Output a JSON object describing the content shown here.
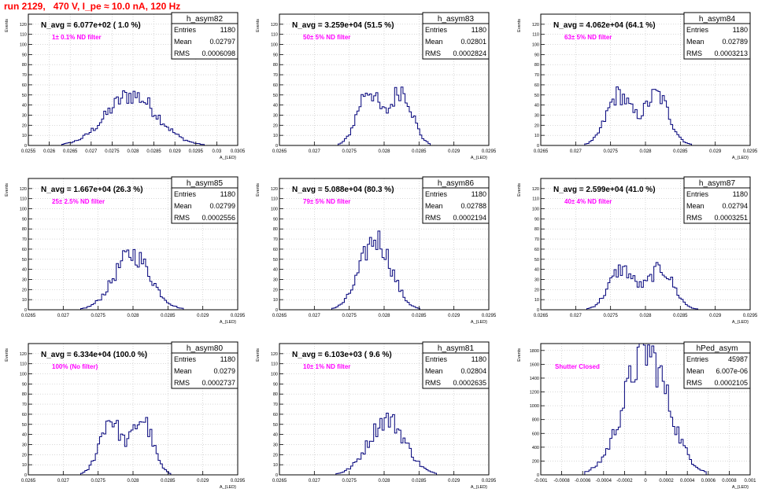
{
  "title": "run 2129,   470 V, I_pe ≈ 10.0 nA, 120 Hz",
  "ylabel": "Events",
  "xlabel": "A_{LED}",
  "colors": {
    "title": "#ff0000",
    "annotation": "#ff00ff",
    "histogram": "#00007a",
    "grid": "#c0c0c0"
  },
  "chart_data": [
    {
      "type": "histogram",
      "name": "h_asym82",
      "navg": "N_avg = 6.077e+02 ( 1.0 %)",
      "filter": "1± 0.1% ND filter",
      "stats": {
        "entries": "1180",
        "mean": "0.02797",
        "rms": "0.0006098"
      },
      "xlim": [
        0.0255,
        0.0305
      ],
      "ylim": [
        0,
        130
      ],
      "mu": 0.02797,
      "sigma": 0.00061,
      "peak": 50,
      "shape": "single",
      "grid": true,
      "xticks": [
        {
          "v": 0.0255,
          "l": "0.0255"
        },
        {
          "v": 0.026,
          "l": "0.026"
        },
        {
          "v": 0.0265,
          "l": "0.0265"
        },
        {
          "v": 0.027,
          "l": "0.027"
        },
        {
          "v": 0.0275,
          "l": "0.0275"
        },
        {
          "v": 0.028,
          "l": "0.028"
        },
        {
          "v": 0.0285,
          "l": "0.0285"
        },
        {
          "v": 0.029,
          "l": "0.029"
        },
        {
          "v": 0.0295,
          "l": "0.0295"
        },
        {
          "v": 0.03,
          "l": "0.03"
        },
        {
          "v": 0.0305,
          "l": "0.0305"
        }
      ],
      "yticks": [
        {
          "v": 0,
          "l": "0"
        },
        {
          "v": 10,
          "l": "10"
        },
        {
          "v": 20,
          "l": "20"
        },
        {
          "v": 30,
          "l": "30"
        },
        {
          "v": 40,
          "l": "40"
        },
        {
          "v": 50,
          "l": "50"
        },
        {
          "v": 60,
          "l": "60"
        },
        {
          "v": 70,
          "l": "70"
        },
        {
          "v": 80,
          "l": "80"
        },
        {
          "v": 90,
          "l": "90"
        },
        {
          "v": 100,
          "l": "100"
        },
        {
          "v": 110,
          "l": "110"
        },
        {
          "v": 120,
          "l": "120"
        }
      ]
    },
    {
      "type": "histogram",
      "name": "h_asym83",
      "navg": "N_avg = 3.259e+04 (51.5 %)",
      "filter": "50± 5% ND filter",
      "stats": {
        "entries": "1180",
        "mean": "0.02801",
        "rms": "0.0002824"
      },
      "xlim": [
        0.0265,
        0.0295
      ],
      "ylim": [
        0,
        130
      ],
      "mu": 0.02801,
      "sigma": 0.00028,
      "peak": 55,
      "shape": "double",
      "grid": true,
      "xticks": [
        {
          "v": 0.0265,
          "l": "0.0265"
        },
        {
          "v": 0.027,
          "l": "0.027"
        },
        {
          "v": 0.0275,
          "l": "0.0275"
        },
        {
          "v": 0.028,
          "l": "0.028"
        },
        {
          "v": 0.0285,
          "l": "0.0285"
        },
        {
          "v": 0.029,
          "l": "0.029"
        },
        {
          "v": 0.0295,
          "l": "0.0295"
        }
      ],
      "yticks": [
        {
          "v": 0,
          "l": "0"
        },
        {
          "v": 10,
          "l": "10"
        },
        {
          "v": 20,
          "l": "20"
        },
        {
          "v": 30,
          "l": "30"
        },
        {
          "v": 40,
          "l": "40"
        },
        {
          "v": 50,
          "l": "50"
        },
        {
          "v": 60,
          "l": "60"
        },
        {
          "v": 70,
          "l": "70"
        },
        {
          "v": 80,
          "l": "80"
        },
        {
          "v": 90,
          "l": "90"
        },
        {
          "v": 100,
          "l": "100"
        },
        {
          "v": 110,
          "l": "110"
        },
        {
          "v": 120,
          "l": "120"
        }
      ]
    },
    {
      "type": "histogram",
      "name": "h_asym84",
      "navg": "N_avg = 4.062e+04 (64.1 %)",
      "filter": "63± 5% ND filter",
      "stats": {
        "entries": "1180",
        "mean": "0.02789",
        "rms": "0.0003213"
      },
      "xlim": [
        0.0265,
        0.0295
      ],
      "ylim": [
        0,
        130
      ],
      "mu": 0.02789,
      "sigma": 0.00032,
      "peak": 50,
      "shape": "double",
      "grid": true,
      "xticks": [
        {
          "v": 0.0265,
          "l": "0.0265"
        },
        {
          "v": 0.027,
          "l": "0.027"
        },
        {
          "v": 0.0275,
          "l": "0.0275"
        },
        {
          "v": 0.028,
          "l": "0.028"
        },
        {
          "v": 0.0285,
          "l": "0.0285"
        },
        {
          "v": 0.029,
          "l": "0.029"
        },
        {
          "v": 0.0295,
          "l": "0.0295"
        }
      ],
      "yticks": [
        {
          "v": 0,
          "l": "0"
        },
        {
          "v": 10,
          "l": "10"
        },
        {
          "v": 20,
          "l": "20"
        },
        {
          "v": 30,
          "l": "30"
        },
        {
          "v": 40,
          "l": "40"
        },
        {
          "v": 50,
          "l": "50"
        },
        {
          "v": 60,
          "l": "60"
        },
        {
          "v": 70,
          "l": "70"
        },
        {
          "v": 80,
          "l": "80"
        },
        {
          "v": 90,
          "l": "90"
        },
        {
          "v": 100,
          "l": "100"
        },
        {
          "v": 110,
          "l": "110"
        },
        {
          "v": 120,
          "l": "120"
        }
      ]
    },
    {
      "type": "histogram",
      "name": "h_asym85",
      "navg": "N_avg = 1.667e+04 (26.3 %)",
      "filter": "25± 2.5% ND filter",
      "stats": {
        "entries": "1180",
        "mean": "0.02799",
        "rms": "0.0002556"
      },
      "xlim": [
        0.0265,
        0.0295
      ],
      "ylim": [
        0,
        130
      ],
      "mu": 0.02799,
      "sigma": 0.00026,
      "peak": 55,
      "shape": "single",
      "grid": true,
      "xticks": [
        {
          "v": 0.0265,
          "l": "0.0265"
        },
        {
          "v": 0.027,
          "l": "0.027"
        },
        {
          "v": 0.0275,
          "l": "0.0275"
        },
        {
          "v": 0.028,
          "l": "0.028"
        },
        {
          "v": 0.0285,
          "l": "0.0285"
        },
        {
          "v": 0.029,
          "l": "0.029"
        },
        {
          "v": 0.0295,
          "l": "0.0295"
        }
      ],
      "yticks": [
        {
          "v": 0,
          "l": "0"
        },
        {
          "v": 10,
          "l": "10"
        },
        {
          "v": 20,
          "l": "20"
        },
        {
          "v": 30,
          "l": "30"
        },
        {
          "v": 40,
          "l": "40"
        },
        {
          "v": 50,
          "l": "50"
        },
        {
          "v": 60,
          "l": "60"
        },
        {
          "v": 70,
          "l": "70"
        },
        {
          "v": 80,
          "l": "80"
        },
        {
          "v": 90,
          "l": "90"
        },
        {
          "v": 100,
          "l": "100"
        },
        {
          "v": 110,
          "l": "110"
        },
        {
          "v": 120,
          "l": "120"
        }
      ]
    },
    {
      "type": "histogram",
      "name": "h_asym86",
      "navg": "N_avg = 5.088e+04 (80.3 %)",
      "filter": "79± 5% ND filter",
      "stats": {
        "entries": "1180",
        "mean": "0.02788",
        "rms": "0.0002194"
      },
      "xlim": [
        0.0265,
        0.0295
      ],
      "ylim": [
        0,
        130
      ],
      "mu": 0.02788,
      "sigma": 0.00022,
      "peak": 70,
      "shape": "single",
      "grid": true,
      "xticks": [
        {
          "v": 0.0265,
          "l": "0.0265"
        },
        {
          "v": 0.027,
          "l": "0.027"
        },
        {
          "v": 0.0275,
          "l": "0.0275"
        },
        {
          "v": 0.028,
          "l": "0.028"
        },
        {
          "v": 0.0285,
          "l": "0.0285"
        },
        {
          "v": 0.029,
          "l": "0.029"
        },
        {
          "v": 0.0295,
          "l": "0.0295"
        }
      ],
      "yticks": [
        {
          "v": 0,
          "l": "0"
        },
        {
          "v": 10,
          "l": "10"
        },
        {
          "v": 20,
          "l": "20"
        },
        {
          "v": 30,
          "l": "30"
        },
        {
          "v": 40,
          "l": "40"
        },
        {
          "v": 50,
          "l": "50"
        },
        {
          "v": 60,
          "l": "60"
        },
        {
          "v": 70,
          "l": "70"
        },
        {
          "v": 80,
          "l": "80"
        },
        {
          "v": 90,
          "l": "90"
        },
        {
          "v": 100,
          "l": "100"
        },
        {
          "v": 110,
          "l": "110"
        },
        {
          "v": 120,
          "l": "120"
        }
      ]
    },
    {
      "type": "histogram",
      "name": "h_asym87",
      "navg": "N_avg = 2.599e+04 (41.0 %)",
      "filter": "40± 4% ND filter",
      "stats": {
        "entries": "1180",
        "mean": "0.02794",
        "rms": "0.0003251"
      },
      "xlim": [
        0.0265,
        0.0295
      ],
      "ylim": [
        0,
        130
      ],
      "mu": 0.02794,
      "sigma": 0.00033,
      "peak": 40,
      "shape": "double",
      "grid": true,
      "xticks": [
        {
          "v": 0.0265,
          "l": "0.0265"
        },
        {
          "v": 0.027,
          "l": "0.027"
        },
        {
          "v": 0.0275,
          "l": "0.0275"
        },
        {
          "v": 0.028,
          "l": "0.028"
        },
        {
          "v": 0.0285,
          "l": "0.0285"
        },
        {
          "v": 0.029,
          "l": "0.029"
        },
        {
          "v": 0.0295,
          "l": "0.0295"
        }
      ],
      "yticks": [
        {
          "v": 0,
          "l": "0"
        },
        {
          "v": 10,
          "l": "10"
        },
        {
          "v": 20,
          "l": "20"
        },
        {
          "v": 30,
          "l": "30"
        },
        {
          "v": 40,
          "l": "40"
        },
        {
          "v": 50,
          "l": "50"
        },
        {
          "v": 60,
          "l": "60"
        },
        {
          "v": 70,
          "l": "70"
        },
        {
          "v": 80,
          "l": "80"
        },
        {
          "v": 90,
          "l": "90"
        },
        {
          "v": 100,
          "l": "100"
        },
        {
          "v": 110,
          "l": "110"
        },
        {
          "v": 120,
          "l": "120"
        }
      ]
    },
    {
      "type": "histogram",
      "name": "h_asym80",
      "navg": "N_avg = 6.334e+04 (100.0 %)",
      "filter": "100% (No filter)",
      "stats": {
        "entries": "1180",
        "mean": "0.0279",
        "rms": "0.0002737"
      },
      "xlim": [
        0.0265,
        0.0295
      ],
      "ylim": [
        0,
        130
      ],
      "mu": 0.0279,
      "sigma": 0.00027,
      "peak": 55,
      "shape": "double",
      "grid": true,
      "xticks": [
        {
          "v": 0.0265,
          "l": "0.0265"
        },
        {
          "v": 0.027,
          "l": "0.027"
        },
        {
          "v": 0.0275,
          "l": "0.0275"
        },
        {
          "v": 0.028,
          "l": "0.028"
        },
        {
          "v": 0.0285,
          "l": "0.0285"
        },
        {
          "v": 0.029,
          "l": "0.029"
        },
        {
          "v": 0.0295,
          "l": "0.0295"
        }
      ],
      "yticks": [
        {
          "v": 0,
          "l": "0"
        },
        {
          "v": 10,
          "l": "10"
        },
        {
          "v": 20,
          "l": "20"
        },
        {
          "v": 30,
          "l": "30"
        },
        {
          "v": 40,
          "l": "40"
        },
        {
          "v": 50,
          "l": "50"
        },
        {
          "v": 60,
          "l": "60"
        },
        {
          "v": 70,
          "l": "70"
        },
        {
          "v": 80,
          "l": "80"
        },
        {
          "v": 90,
          "l": "90"
        },
        {
          "v": 100,
          "l": "100"
        },
        {
          "v": 110,
          "l": "110"
        },
        {
          "v": 120,
          "l": "120"
        }
      ]
    },
    {
      "type": "histogram",
      "name": "h_asym81",
      "navg": "N_avg = 6.103e+03 ( 9.6 %)",
      "filter": "10± 1% ND filter",
      "stats": {
        "entries": "1180",
        "mean": "0.02804",
        "rms": "0.0002635"
      },
      "xlim": [
        0.0265,
        0.0295
      ],
      "ylim": [
        0,
        130
      ],
      "mu": 0.02804,
      "sigma": 0.00026,
      "peak": 55,
      "shape": "single",
      "grid": true,
      "xticks": [
        {
          "v": 0.0265,
          "l": "0.0265"
        },
        {
          "v": 0.027,
          "l": "0.027"
        },
        {
          "v": 0.0275,
          "l": "0.0275"
        },
        {
          "v": 0.028,
          "l": "0.028"
        },
        {
          "v": 0.0285,
          "l": "0.0285"
        },
        {
          "v": 0.029,
          "l": "0.029"
        },
        {
          "v": 0.0295,
          "l": "0.0295"
        }
      ],
      "yticks": [
        {
          "v": 0,
          "l": "0"
        },
        {
          "v": 10,
          "l": "10"
        },
        {
          "v": 20,
          "l": "20"
        },
        {
          "v": 30,
          "l": "30"
        },
        {
          "v": 40,
          "l": "40"
        },
        {
          "v": 50,
          "l": "50"
        },
        {
          "v": 60,
          "l": "60"
        },
        {
          "v": 70,
          "l": "70"
        },
        {
          "v": 80,
          "l": "80"
        },
        {
          "v": 90,
          "l": "90"
        },
        {
          "v": 100,
          "l": "100"
        },
        {
          "v": 110,
          "l": "110"
        },
        {
          "v": 120,
          "l": "120"
        }
      ]
    },
    {
      "type": "histogram",
      "name": "hPed_asym",
      "navg": "",
      "filter": "Shutter Closed",
      "stats": {
        "entries": "45987",
        "mean": "6.007e-06",
        "rms": "0.0002105"
      },
      "xlim": [
        -0.001,
        0.001
      ],
      "ylim": [
        0,
        1900
      ],
      "mu": 6e-06,
      "sigma": 0.00021,
      "peak": 1780,
      "shape": "single",
      "grid": true,
      "xticks": [
        {
          "v": -0.001,
          "l": "-0.001"
        },
        {
          "v": -0.0008,
          "l": "-0.0008"
        },
        {
          "v": -0.0006,
          "l": "-0.0006"
        },
        {
          "v": -0.0004,
          "l": "-0.0004"
        },
        {
          "v": -0.0002,
          "l": "-0.0002"
        },
        {
          "v": 0,
          "l": "0"
        },
        {
          "v": 0.0002,
          "l": "0.0002"
        },
        {
          "v": 0.0004,
          "l": "0.0004"
        },
        {
          "v": 0.0006,
          "l": "0.0006"
        },
        {
          "v": 0.0008,
          "l": "0.0008"
        },
        {
          "v": 0.001,
          "l": "0.001"
        }
      ],
      "yticks": [
        {
          "v": 0,
          "l": "0"
        },
        {
          "v": 200,
          "l": "200"
        },
        {
          "v": 400,
          "l": "400"
        },
        {
          "v": 600,
          "l": "600"
        },
        {
          "v": 800,
          "l": "800"
        },
        {
          "v": 1000,
          "l": "1000"
        },
        {
          "v": 1200,
          "l": "1200"
        },
        {
          "v": 1400,
          "l": "1400"
        },
        {
          "v": 1600,
          "l": "1600"
        },
        {
          "v": 1800,
          "l": "1800"
        }
      ]
    }
  ]
}
